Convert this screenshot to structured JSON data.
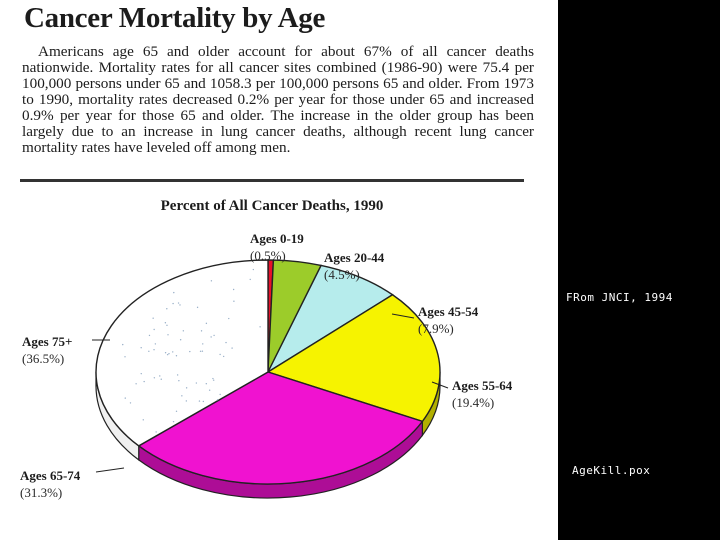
{
  "slide": {
    "title": "Cancer Mortality by Age",
    "paragraph": "Americans age 65 and older account for about 67% of all cancer deaths nationwide. Mortality rates for all cancer sites combined (1986-90) were 75.4 per 100,000 persons under 65 and 1058.3 per 100,000 persons 65 and older. From 1973 to 1990, mortality rates decreased 0.2% per year for those under 65 and increased 0.9% per year for those 65 and older. The increase in the older group has been largely due to an increase in lung cancer deaths, although recent lung cancer mortality rates have leveled off among men."
  },
  "side_notes": {
    "source": "FRom JNCI, 1994",
    "filename": "AgeKill.pox"
  },
  "chart_data": {
    "type": "pie",
    "title": "Percent of All Cancer Deaths, 1990",
    "slices": [
      {
        "label": "Ages 0-19",
        "value_label": "(0.5%)",
        "value": 0.5,
        "color": "#e8102a"
      },
      {
        "label": "Ages 20-44",
        "value_label": "(4.5%)",
        "value": 4.5,
        "color": "#9ccc2a"
      },
      {
        "label": "Ages 45-54",
        "value_label": "(7.9%)",
        "value": 7.9,
        "color": "#b6ecec"
      },
      {
        "label": "Ages 55-64",
        "value_label": "(19.4%)",
        "value": 19.4,
        "color": "#f6f300"
      },
      {
        "label": "Ages 65-74",
        "value_label": "(31.3%)",
        "value": 31.3,
        "color": "#f012d0"
      },
      {
        "label": "Ages 75+",
        "value_label": "(36.5%)",
        "value": 36.5,
        "color": "#ffffff"
      }
    ],
    "legend": "none"
  }
}
